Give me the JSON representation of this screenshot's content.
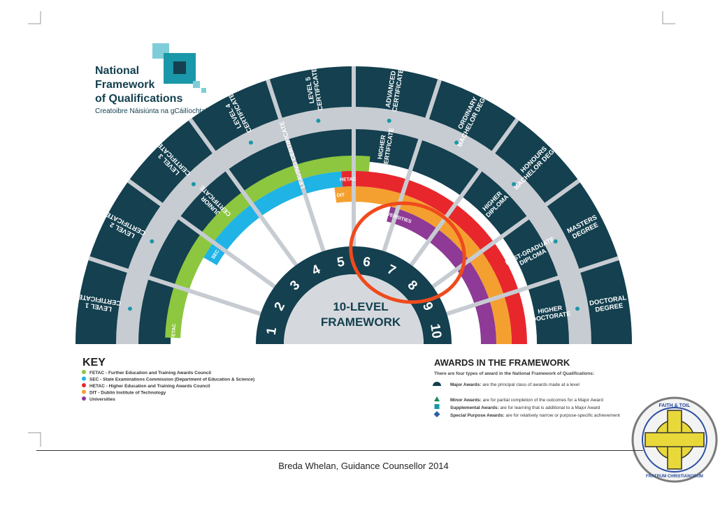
{
  "logo": {
    "title_lines": [
      "National",
      "Framework",
      "of Qualifications"
    ],
    "subtitle": "Creatoibre Náisiúnta na gCáilíochtaí"
  },
  "framework": {
    "center_lines": [
      "10-LEVEL",
      "FRAMEWORK"
    ],
    "levels": [
      "1",
      "2",
      "3",
      "4",
      "5",
      "6",
      "7",
      "8",
      "9",
      "10"
    ],
    "major_awards": [
      [
        "LEVEL 1",
        "CERTIFICATE"
      ],
      [
        "LEVEL 2",
        "CERTIFICATE"
      ],
      [
        "LEVEL 3",
        "CERTIFICATE"
      ],
      [
        "LEVEL 4",
        "CERTIFICATE"
      ],
      [
        "LEVEL 5",
        "CERTIFICATE"
      ],
      [
        "ADVANCED",
        "CERTIFICATE"
      ],
      [
        "ORDINARY",
        "BACHELOR DEGREE"
      ],
      [
        "HONOURS",
        "BACHELOR DEGREE"
      ],
      [
        "MASTERS",
        "DEGREE"
      ],
      [
        "DOCTORAL",
        "DEGREE"
      ]
    ],
    "inner_awards": [
      {
        "lines": [
          "JUNIOR",
          "CERTIFICATE"
        ]
      },
      {
        "lines": [
          "LEAVING CERTIFICATE"
        ]
      },
      {
        "lines": [
          "HIGHER",
          "CERTIFICATE"
        ]
      },
      {
        "lines": [
          "HIGHER",
          "DIPLOMA"
        ]
      },
      {
        "lines": [
          "POST-GRADUATE",
          "DIPLOMA"
        ]
      },
      {
        "lines": [
          "HIGHER",
          "DOCTORATE"
        ]
      }
    ],
    "band_labels": {
      "fetac": "FETAC",
      "sec": "SEC",
      "hetac": "HETAC",
      "dit": "DIT",
      "universities": "UNIVERSITIES"
    }
  },
  "key": {
    "title": "KEY",
    "items": [
      {
        "color": "#8dc63f",
        "text": "FETAC - Further Education and Training Awards Council"
      },
      {
        "color": "#1fb3e6",
        "text": "SEC - State Examinations Commission (Department of Education & Science)"
      },
      {
        "color": "#e8272c",
        "text": "HETAC - Higher Education and Training Awards Council"
      },
      {
        "color": "#f4a030",
        "text": "DIT - Dublin Institute of Technology"
      },
      {
        "color": "#8e3a96",
        "text": "Universities"
      }
    ]
  },
  "awards": {
    "title": "AWARDS IN THE FRAMEWORK",
    "intro": "There are four types of award in the National Framework of Qualifications:",
    "items": [
      {
        "icon": "semicircle-icon",
        "bold": "Major Awards:",
        "text": "are the principal class of awards made at a level"
      },
      {
        "icon": "triangle-icon",
        "bold": "Minor Awards:",
        "text": "are for partial completion of the outcomes for a Major Award"
      },
      {
        "icon": "square-icon",
        "bold": "Supplemental Awards:",
        "text": "are for learning that is additional to a Major Award"
      },
      {
        "icon": "diamond-icon",
        "bold": "Special Purpose Awards:",
        "text": "are for relatively narrow or purpose-specific achievement"
      }
    ]
  },
  "crest": {
    "icon": "crest-icon",
    "motto_top": "FAITH & TOIL",
    "motto_bottom": "FRATRUM CHRISTIANORUM"
  },
  "footer": {
    "text": "Breda Whelan, Guidance Counsellor 2014"
  },
  "colors": {
    "navy": "#14404f",
    "ring_grey": "#c7ccd2",
    "teal_light": "#7fcdd8",
    "teal": "#1a97a8",
    "green": "#8dc63f",
    "blue": "#1fb3e6",
    "red": "#e8272c",
    "orange": "#f4a030",
    "purple": "#8e3a96",
    "highlight": "#f04a1c"
  }
}
